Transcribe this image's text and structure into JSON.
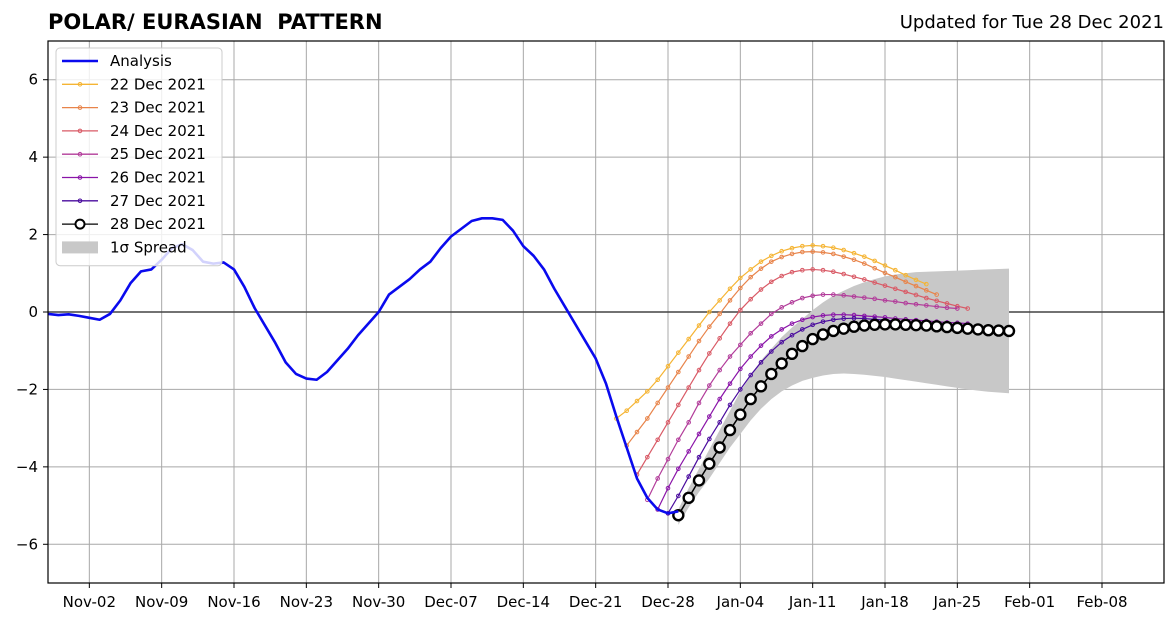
{
  "title_left": "POLAR/ EURASIAN  PATTERN",
  "title_right": "Updated for Tue 28 Dec 2021",
  "chart_data": {
    "type": "line",
    "ylim": [
      -7,
      7
    ],
    "yticks": [
      -6,
      -4,
      -2,
      0,
      2,
      4,
      6
    ],
    "ytick_labels": [
      "−6",
      "−4",
      "−2",
      "0",
      "2",
      "4",
      "6"
    ],
    "xlim": [
      "2021-10-29",
      "2022-02-14"
    ],
    "xtick_labels": [
      "Nov-02",
      "Nov-09",
      "Nov-16",
      "Nov-23",
      "Nov-30",
      "Dec-07",
      "Dec-14",
      "Dec-21",
      "Dec-28",
      "Jan-04",
      "Jan-11",
      "Jan-18",
      "Jan-25",
      "Feb-01",
      "Feb-08"
    ],
    "xtick_dates": [
      "2021-11-02",
      "2021-11-09",
      "2021-11-16",
      "2021-11-23",
      "2021-11-30",
      "2021-12-07",
      "2021-12-14",
      "2021-12-21",
      "2021-12-28",
      "2022-01-04",
      "2022-01-11",
      "2022-01-18",
      "2022-01-25",
      "2022-02-01",
      "2022-02-08"
    ],
    "grid": true,
    "legend": {
      "position": "top-left",
      "spread_label": "1σ Spread"
    },
    "analysis": {
      "name": "Analysis",
      "color": "#0a0aee",
      "start": "2021-10-29",
      "values": [
        -0.05,
        -0.08,
        -0.06,
        -0.1,
        -0.15,
        -0.2,
        -0.05,
        0.3,
        0.75,
        1.05,
        1.1,
        1.35,
        1.65,
        1.75,
        1.6,
        1.3,
        1.25,
        1.28,
        1.1,
        0.65,
        0.1,
        -0.35,
        -0.8,
        -1.3,
        -1.6,
        -1.72,
        -1.75,
        -1.55,
        -1.25,
        -0.95,
        -0.6,
        -0.3,
        0.0,
        0.45,
        0.65,
        0.85,
        1.1,
        1.3,
        1.65,
        1.95,
        2.15,
        2.35,
        2.42,
        2.42,
        2.38,
        2.1,
        1.7,
        1.45,
        1.1,
        0.6,
        0.15,
        -0.3,
        -0.75,
        -1.2,
        -1.85,
        -2.7,
        -3.5,
        -4.3,
        -4.8,
        -5.1,
        -5.2,
        -5.15
      ]
    },
    "forecasts": [
      {
        "name": "22 Dec 2021",
        "color": "#f5b433",
        "start": "2021-12-23",
        "values": [
          -2.75,
          -2.55,
          -2.3,
          -2.05,
          -1.75,
          -1.4,
          -1.05,
          -0.7,
          -0.35,
          0.0,
          0.3,
          0.6,
          0.88,
          1.1,
          1.3,
          1.45,
          1.57,
          1.65,
          1.7,
          1.72,
          1.7,
          1.66,
          1.6,
          1.52,
          1.43,
          1.32,
          1.2,
          1.08,
          0.95,
          0.83,
          0.72
        ]
      },
      {
        "name": "23 Dec 2021",
        "color": "#e8844a",
        "start": "2021-12-24",
        "values": [
          -3.45,
          -3.1,
          -2.75,
          -2.35,
          -1.95,
          -1.55,
          -1.15,
          -0.75,
          -0.38,
          -0.05,
          0.3,
          0.62,
          0.9,
          1.12,
          1.3,
          1.42,
          1.5,
          1.55,
          1.56,
          1.54,
          1.5,
          1.43,
          1.35,
          1.25,
          1.13,
          1.01,
          0.9,
          0.78,
          0.67,
          0.56,
          0.45
        ]
      },
      {
        "name": "24 Dec 2021",
        "color": "#d95a66",
        "start": "2021-12-25",
        "values": [
          -4.2,
          -3.75,
          -3.3,
          -2.85,
          -2.4,
          -1.95,
          -1.5,
          -1.07,
          -0.68,
          -0.3,
          0.05,
          0.33,
          0.58,
          0.78,
          0.93,
          1.03,
          1.08,
          1.1,
          1.08,
          1.04,
          0.98,
          0.91,
          0.84,
          0.76,
          0.68,
          0.6,
          0.52,
          0.44,
          0.36,
          0.29,
          0.22,
          0.15,
          0.09
        ]
      },
      {
        "name": "25 Dec 2021",
        "color": "#b23c9a",
        "start": "2021-12-26",
        "values": [
          -4.85,
          -4.3,
          -3.8,
          -3.3,
          -2.85,
          -2.35,
          -1.9,
          -1.5,
          -1.15,
          -0.85,
          -0.55,
          -0.3,
          -0.05,
          0.12,
          0.25,
          0.36,
          0.42,
          0.45,
          0.45,
          0.43,
          0.4,
          0.37,
          0.34,
          0.3,
          0.27,
          0.23,
          0.2,
          0.17,
          0.14,
          0.11,
          0.09
        ]
      },
      {
        "name": "26 Dec 2021",
        "color": "#8a14a8",
        "start": "2021-12-27",
        "values": [
          -5.1,
          -4.55,
          -4.05,
          -3.6,
          -3.15,
          -2.7,
          -2.25,
          -1.85,
          -1.47,
          -1.15,
          -0.87,
          -0.63,
          -0.45,
          -0.3,
          -0.2,
          -0.13,
          -0.09,
          -0.07,
          -0.07,
          -0.08,
          -0.1,
          -0.12,
          -0.14,
          -0.17,
          -0.19,
          -0.21,
          -0.23,
          -0.25,
          -0.27,
          -0.28,
          -0.3
        ]
      },
      {
        "name": "27 Dec 2021",
        "color": "#4a0b9e",
        "start": "2021-12-28",
        "values": [
          -5.2,
          -4.75,
          -4.25,
          -3.75,
          -3.28,
          -2.85,
          -2.4,
          -2.0,
          -1.63,
          -1.3,
          -1.02,
          -0.78,
          -0.6,
          -0.45,
          -0.33,
          -0.25,
          -0.2,
          -0.17,
          -0.16,
          -0.17,
          -0.19,
          -0.21,
          -0.23,
          -0.26,
          -0.28,
          -0.31,
          -0.33,
          -0.35,
          -0.37,
          -0.39,
          -0.4
        ]
      },
      {
        "name": "28 Dec 2021",
        "color": "#000000",
        "start": "2021-12-29",
        "values": [
          -5.25,
          -4.8,
          -4.35,
          -3.92,
          -3.5,
          -3.05,
          -2.65,
          -2.25,
          -1.92,
          -1.6,
          -1.33,
          -1.08,
          -0.88,
          -0.7,
          -0.58,
          -0.49,
          -0.43,
          -0.38,
          -0.35,
          -0.33,
          -0.32,
          -0.32,
          -0.33,
          -0.34,
          -0.35,
          -0.37,
          -0.39,
          -0.41,
          -0.43,
          -0.45,
          -0.47,
          -0.48,
          -0.49
        ]
      }
    ],
    "spread": {
      "start": "2021-12-29",
      "upper": [
        -5.1,
        -4.55,
        -4.05,
        -3.55,
        -3.05,
        -2.55,
        -2.05,
        -1.65,
        -1.25,
        -0.95,
        -0.65,
        -0.4,
        -0.18,
        0.05,
        0.25,
        0.42,
        0.55,
        0.67,
        0.77,
        0.85,
        0.92,
        0.97,
        1.0,
        1.03,
        1.04,
        1.05,
        1.06,
        1.07,
        1.08,
        1.09,
        1.1,
        1.11,
        1.12
      ],
      "lower": [
        -5.5,
        -5.05,
        -4.65,
        -4.3,
        -3.9,
        -3.5,
        -3.15,
        -2.8,
        -2.5,
        -2.25,
        -2.05,
        -1.9,
        -1.78,
        -1.7,
        -1.64,
        -1.6,
        -1.59,
        -1.6,
        -1.62,
        -1.65,
        -1.68,
        -1.72,
        -1.76,
        -1.8,
        -1.84,
        -1.88,
        -1.92,
        -1.96,
        -2.0,
        -2.03,
        -2.06,
        -2.08,
        -2.1
      ]
    }
  }
}
